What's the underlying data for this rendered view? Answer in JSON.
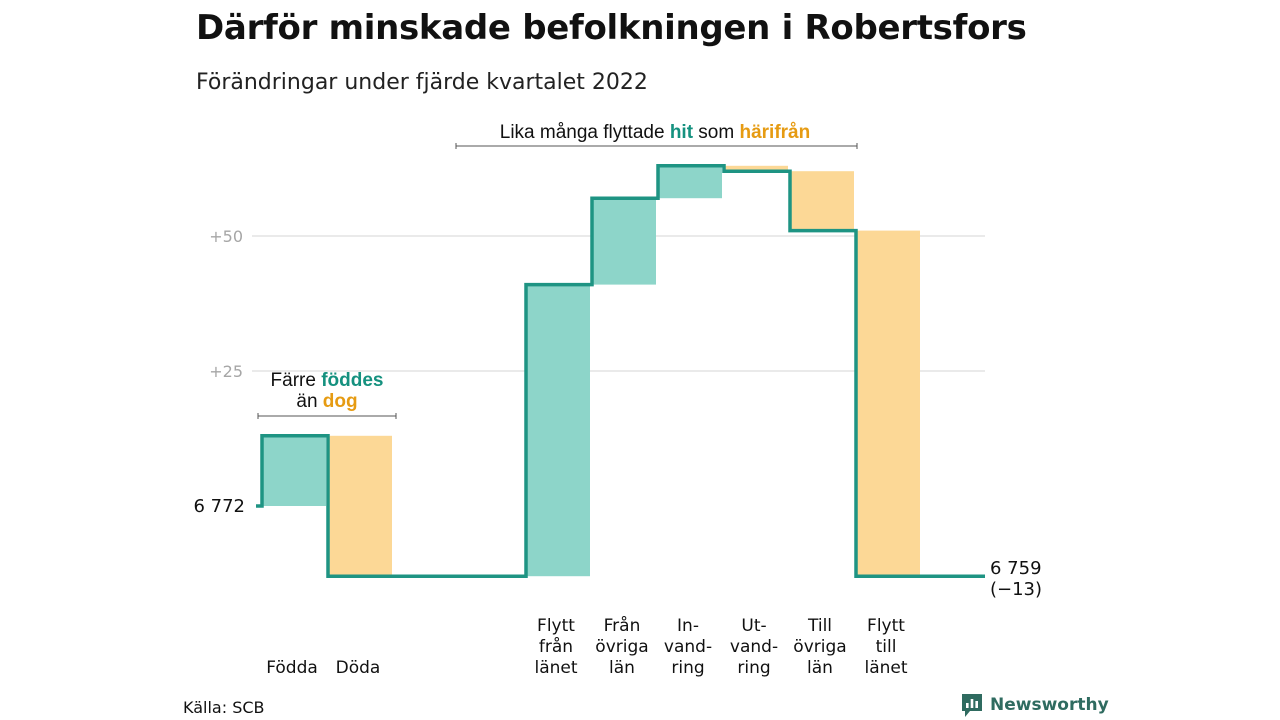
{
  "title": "Därför minskade befolkningen i Robertsfors",
  "subtitle": "Förändringar under fjärde kvartalet 2022",
  "source": "Källa: SCB",
  "brand": "Newsworthy",
  "colors": {
    "increase_fill": "#8dd5c9",
    "decrease_fill": "#fcd896",
    "line": "#1e9483",
    "highlight_in": "#15917f",
    "highlight_out": "#e69b12",
    "grid": "#dedede",
    "brand": "#2f6b60"
  },
  "chart_data": {
    "type": "bar",
    "subtype": "waterfall",
    "start_value": 6772,
    "start_label": "6 772",
    "end_value": 6759,
    "end_label": "6 759",
    "end_change_label": "(−13)",
    "y_ticks": [
      {
        "value": 25,
        "label": "+25"
      },
      {
        "value": 50,
        "label": "+50"
      }
    ],
    "grid": true,
    "steps": [
      {
        "label": [
          "Födda"
        ],
        "delta": 13
      },
      {
        "label": [
          "Döda"
        ],
        "delta": -26
      },
      {
        "label": [
          "Flytt",
          "från",
          "länet"
        ],
        "delta": 54
      },
      {
        "label": [
          "Från",
          "övriga",
          "län"
        ],
        "delta": 16
      },
      {
        "label": [
          "In-",
          "vand-",
          "ring"
        ],
        "delta": 6
      },
      {
        "label": [
          "Ut-",
          "vand-",
          "ring"
        ],
        "delta": -1
      },
      {
        "label": [
          "Till",
          "övriga",
          "län"
        ],
        "delta": -11
      },
      {
        "label": [
          "Flytt",
          "till",
          "länet"
        ],
        "delta": -64
      }
    ],
    "annotations": [
      {
        "parts": [
          {
            "text": "Färre ",
            "style": "normal"
          },
          {
            "text": "föddes",
            "style": "in"
          }
        ]
      },
      {
        "parts": [
          {
            "text": "än ",
            "style": "normal"
          },
          {
            "text": "dog",
            "style": "out"
          }
        ]
      },
      {
        "parts": [
          {
            "text": "Lika många flyttade ",
            "style": "normal"
          },
          {
            "text": "hit",
            "style": "in"
          },
          {
            "text": " som ",
            "style": "normal"
          },
          {
            "text": "härifrån",
            "style": "out"
          }
        ]
      }
    ]
  }
}
